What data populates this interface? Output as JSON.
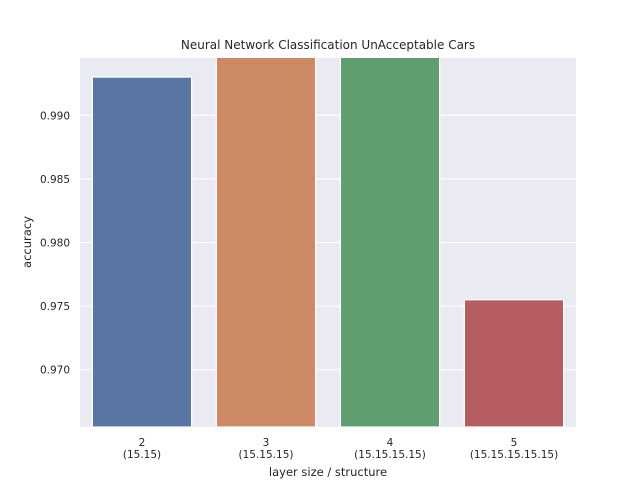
{
  "chart_data": {
    "type": "bar",
    "title": "Neural Network Classification UnAcceptable Cars",
    "xlabel": "layer size / structure",
    "ylabel": "accuracy",
    "categories": [
      [
        "2",
        "(15.15)"
      ],
      [
        "3",
        "(15.15.15)"
      ],
      [
        "4",
        "(15.15.15.15)"
      ],
      [
        "5",
        "(15.15.15.15.15)"
      ]
    ],
    "values": [
      0.993,
      0.995,
      0.995,
      0.9755
    ],
    "colors": [
      "#5975a4",
      "#cc8963",
      "#5f9e6e",
      "#b55d60"
    ],
    "ylim": [
      0.9655,
      0.9945
    ],
    "yticks": [
      0.97,
      0.975,
      0.98,
      0.985,
      0.99
    ],
    "ytick_labels": [
      "0.970",
      "0.975",
      "0.980",
      "0.985",
      "0.990"
    ],
    "grid": true,
    "plot_background": "#eaeaf2",
    "grid_color": "#ffffff"
  }
}
